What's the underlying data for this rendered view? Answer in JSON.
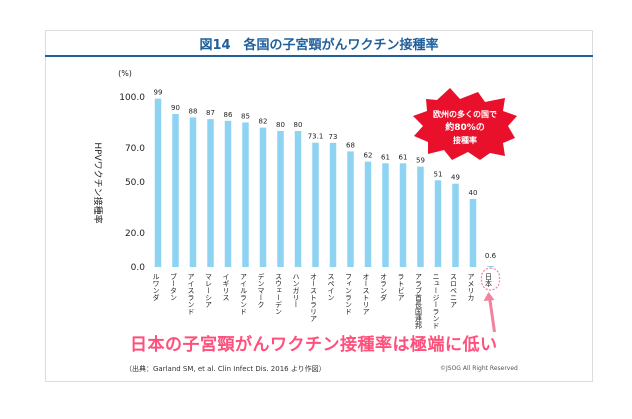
{
  "title": "図14　各国の子宮頸がんワクチン接種率",
  "chart_data": {
    "type": "bar",
    "title": "図14　各国の子宮頸がんワクチン接種率",
    "unit": "(%)",
    "ylabel": "HPVワクチン接種率",
    "xlabel": "",
    "ylim": [
      0,
      100
    ],
    "yticks": [
      "0.0",
      "20.0",
      "50.0",
      "70.0",
      "100.0"
    ],
    "grid": false,
    "categories": [
      "ルワンダ",
      "ブータン",
      "アイスランド",
      "マレーシア",
      "イギリス",
      "アイルランド",
      "デンマーク",
      "スウェーデン",
      "ハンガリー",
      "オーストラリア",
      "スペイン",
      "フィンランド",
      "オーストリア",
      "オランダ",
      "ラトビア",
      "アラブ首長国連邦",
      "ニュージーランド",
      "スロベニア",
      "アメリカ",
      "日本"
    ],
    "values": [
      99,
      90,
      88,
      87,
      86,
      85,
      82,
      80,
      80,
      73.1,
      73,
      68,
      62,
      61,
      61,
      59,
      51,
      49,
      40,
      0.6
    ],
    "value_labels": [
      "99",
      "90",
      "88",
      "87",
      "86",
      "85",
      "82",
      "80",
      "80",
      "73.1",
      "73",
      "68",
      "62",
      "61",
      "61",
      "59",
      "51",
      "49",
      "40",
      "0.6"
    ],
    "highlight_category": "日本"
  },
  "callout": {
    "lines": [
      "欧州の多くの国で",
      "約80%の",
      "接種率"
    ],
    "color": "#e8102a"
  },
  "headline": "日本の子宮頸がんワクチン接種率は極端に低い",
  "source": "（出典：Garland SM, et al. Clin Infect Dis. 2016 より作図）",
  "copyright": "©JSOG All Right Reserved",
  "colors": {
    "bar": "#8ed3f2",
    "title": "#1f5f9c",
    "headline": "#ff4f7b",
    "callout": "#e8102a",
    "highlight": "#f0849e"
  }
}
